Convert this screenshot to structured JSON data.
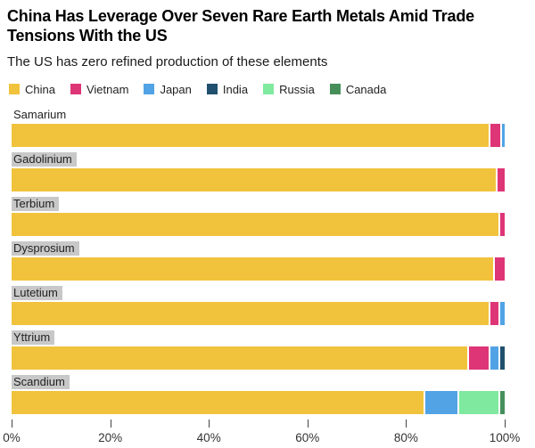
{
  "header": {
    "title": "China Has Leverage Over Seven Rare Earth Metals Amid Trade Tensions With the US",
    "subtitle": "The US has zero refined production of these elements"
  },
  "chart_data": {
    "type": "bar",
    "orientation": "horizontal",
    "stacked": true,
    "unit": "percent",
    "title": "China Has Leverage Over Seven Rare Earth Metals Amid Trade Tensions With the US",
    "subtitle": "The US has zero refined production of these elements",
    "legend_position": "top",
    "grid": false,
    "xlim": [
      0,
      100
    ],
    "x_ticks": [
      "0%",
      "20%",
      "40%",
      "60%",
      "80%",
      "100%"
    ],
    "categories": [
      "Samarium",
      "Gadolinium",
      "Terbium",
      "Dysprosium",
      "Lutetium",
      "Yttrium",
      "Scandium"
    ],
    "category_label_highlighted": [
      false,
      true,
      true,
      true,
      true,
      true,
      true
    ],
    "series": [
      {
        "name": "China",
        "color": "#F1C33C",
        "values": [
          97.5,
          98.5,
          99.0,
          98.0,
          97.5,
          93.5,
          84.5
        ]
      },
      {
        "name": "Vietnam",
        "color": "#DE3577",
        "values": [
          2.0,
          1.5,
          1.0,
          2.0,
          1.5,
          4.0,
          0
        ]
      },
      {
        "name": "Japan",
        "color": "#52A3E6",
        "values": [
          0.5,
          0,
          0,
          0,
          1.0,
          1.5,
          6.5
        ]
      },
      {
        "name": "India",
        "color": "#20506E",
        "values": [
          0,
          0,
          0,
          0,
          0,
          1.0,
          0
        ]
      },
      {
        "name": "Russia",
        "color": "#7FE99F",
        "values": [
          0,
          0,
          0,
          0,
          0,
          0,
          8.0
        ]
      },
      {
        "name": "Canada",
        "color": "#468F5B",
        "values": [
          0,
          0,
          0,
          0,
          0,
          0,
          1.0
        ]
      }
    ],
    "colors": {
      "background": "#ffffff",
      "label_highlight_bg": "#c8c8c8",
      "axis_tick": "#444444",
      "axis_text": "#333333"
    }
  }
}
